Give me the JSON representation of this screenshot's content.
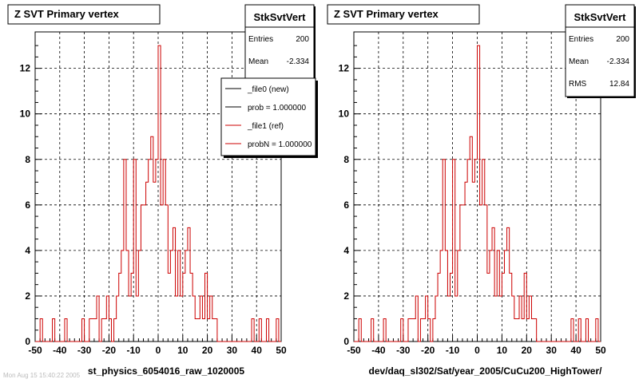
{
  "chart_data": [
    {
      "type": "histogram",
      "title": "Z SVT Primary vertex",
      "xlabel": "st_physics_6054016_raw_1020005",
      "ylabel": "",
      "xlim": [
        -50,
        50
      ],
      "ylim": [
        0,
        13.6
      ],
      "bin_width": 1,
      "x_ticks": [
        -50,
        -40,
        -30,
        -20,
        -10,
        0,
        10,
        20,
        30,
        40,
        50
      ],
      "x_tick_labels": [
        "-50",
        "-40",
        "-30",
        "-20",
        "-10",
        "0",
        "10",
        "20",
        "30",
        "40",
        "50"
      ],
      "y_ticks": [
        0,
        2,
        4,
        6,
        8,
        10,
        12
      ],
      "y_tick_labels": [
        "0",
        "2",
        "4",
        "6",
        "8",
        "10",
        "12"
      ],
      "grid": true,
      "series": [
        {
          "name": "StkSvtVert",
          "color": "#cc0000",
          "bins": [
            {
              "x": -48,
              "count": 1
            },
            {
              "x": -43,
              "count": 1
            },
            {
              "x": -38,
              "count": 1
            },
            {
              "x": -31,
              "count": 1
            },
            {
              "x": -28,
              "count": 1
            },
            {
              "x": -27,
              "count": 1
            },
            {
              "x": -26,
              "count": 1
            },
            {
              "x": -25,
              "count": 2
            },
            {
              "x": -23,
              "count": 1
            },
            {
              "x": -22,
              "count": 1
            },
            {
              "x": -21,
              "count": 2
            },
            {
              "x": -20,
              "count": 1
            },
            {
              "x": -18,
              "count": 1
            },
            {
              "x": -17,
              "count": 2
            },
            {
              "x": -16,
              "count": 3
            },
            {
              "x": -15,
              "count": 4
            },
            {
              "x": -14,
              "count": 8
            },
            {
              "x": -13,
              "count": 4
            },
            {
              "x": -12,
              "count": 2
            },
            {
              "x": -11,
              "count": 3
            },
            {
              "x": -10,
              "count": 8
            },
            {
              "x": -9,
              "count": 2
            },
            {
              "x": -8,
              "count": 4
            },
            {
              "x": -7,
              "count": 6
            },
            {
              "x": -6,
              "count": 6
            },
            {
              "x": -5,
              "count": 7
            },
            {
              "x": -4,
              "count": 8
            },
            {
              "x": -3,
              "count": 9
            },
            {
              "x": -2,
              "count": 7
            },
            {
              "x": -1,
              "count": 8
            },
            {
              "x": 0,
              "count": 13
            },
            {
              "x": 1,
              "count": 6
            },
            {
              "x": 2,
              "count": 8
            },
            {
              "x": 3,
              "count": 6
            },
            {
              "x": 4,
              "count": 3
            },
            {
              "x": 5,
              "count": 4
            },
            {
              "x": 6,
              "count": 5
            },
            {
              "x": 7,
              "count": 2
            },
            {
              "x": 8,
              "count": 4
            },
            {
              "x": 9,
              "count": 2
            },
            {
              "x": 10,
              "count": 3
            },
            {
              "x": 11,
              "count": 4
            },
            {
              "x": 12,
              "count": 5
            },
            {
              "x": 13,
              "count": 3
            },
            {
              "x": 14,
              "count": 2
            },
            {
              "x": 15,
              "count": 1
            },
            {
              "x": 16,
              "count": 1
            },
            {
              "x": 17,
              "count": 2
            },
            {
              "x": 18,
              "count": 1
            },
            {
              "x": 19,
              "count": 3
            },
            {
              "x": 20,
              "count": 1
            },
            {
              "x": 21,
              "count": 2
            },
            {
              "x": 22,
              "count": 1
            },
            {
              "x": 23,
              "count": 1
            },
            {
              "x": 38,
              "count": 1
            },
            {
              "x": 41,
              "count": 1
            },
            {
              "x": 44,
              "count": 1
            },
            {
              "x": 48,
              "count": 1
            }
          ]
        }
      ],
      "stats": {
        "title": "StkSvtVert",
        "rows": [
          {
            "label": "Entries",
            "value": "200"
          },
          {
            "label": "Mean",
            "value": "-2.334"
          }
        ]
      },
      "legend": {
        "placement": "top-right",
        "entries": [
          {
            "label": "_file0 (new)",
            "color": "#000000"
          },
          {
            "label": "prob = 1.000000",
            "color": "#000000"
          },
          {
            "label": "_file1 (ref)",
            "color": "#cc0000"
          },
          {
            "label": "probN = 1.000000",
            "color": "#cc0000"
          }
        ]
      }
    },
    {
      "type": "histogram",
      "title": "Z SVT Primary vertex",
      "xlabel": "dev/daq_sl302/Sat/year_2005/CuCu200_HighTower/",
      "ylabel": "",
      "xlim": [
        -50,
        50
      ],
      "ylim": [
        0,
        13.6
      ],
      "bin_width": 1,
      "x_ticks": [
        -50,
        -40,
        -30,
        -20,
        -10,
        0,
        10,
        20,
        30,
        40,
        50
      ],
      "x_tick_labels": [
        "-50",
        "-40",
        "-30",
        "-20",
        "-10",
        "0",
        "10",
        "20",
        "30",
        "40",
        "50"
      ],
      "y_ticks": [
        0,
        2,
        4,
        6,
        8,
        10,
        12
      ],
      "y_tick_labels": [
        "0",
        "2",
        "4",
        "6",
        "8",
        "10",
        "12"
      ],
      "grid": true,
      "series": [
        {
          "name": "StkSvtVert",
          "color": "#cc0000",
          "bins": [
            {
              "x": -48,
              "count": 1
            },
            {
              "x": -43,
              "count": 1
            },
            {
              "x": -38,
              "count": 1
            },
            {
              "x": -31,
              "count": 1
            },
            {
              "x": -28,
              "count": 1
            },
            {
              "x": -27,
              "count": 1
            },
            {
              "x": -26,
              "count": 1
            },
            {
              "x": -25,
              "count": 2
            },
            {
              "x": -23,
              "count": 1
            },
            {
              "x": -22,
              "count": 1
            },
            {
              "x": -21,
              "count": 2
            },
            {
              "x": -20,
              "count": 1
            },
            {
              "x": -18,
              "count": 1
            },
            {
              "x": -17,
              "count": 2
            },
            {
              "x": -16,
              "count": 3
            },
            {
              "x": -15,
              "count": 4
            },
            {
              "x": -14,
              "count": 8
            },
            {
              "x": -13,
              "count": 4
            },
            {
              "x": -12,
              "count": 2
            },
            {
              "x": -11,
              "count": 3
            },
            {
              "x": -10,
              "count": 8
            },
            {
              "x": -9,
              "count": 2
            },
            {
              "x": -8,
              "count": 4
            },
            {
              "x": -7,
              "count": 6
            },
            {
              "x": -6,
              "count": 6
            },
            {
              "x": -5,
              "count": 7
            },
            {
              "x": -4,
              "count": 8
            },
            {
              "x": -3,
              "count": 9
            },
            {
              "x": -2,
              "count": 7
            },
            {
              "x": -1,
              "count": 8
            },
            {
              "x": 0,
              "count": 13
            },
            {
              "x": 1,
              "count": 6
            },
            {
              "x": 2,
              "count": 8
            },
            {
              "x": 3,
              "count": 6
            },
            {
              "x": 4,
              "count": 3
            },
            {
              "x": 5,
              "count": 4
            },
            {
              "x": 6,
              "count": 5
            },
            {
              "x": 7,
              "count": 2
            },
            {
              "x": 8,
              "count": 4
            },
            {
              "x": 9,
              "count": 2
            },
            {
              "x": 10,
              "count": 3
            },
            {
              "x": 11,
              "count": 4
            },
            {
              "x": 12,
              "count": 5
            },
            {
              "x": 13,
              "count": 3
            },
            {
              "x": 14,
              "count": 2
            },
            {
              "x": 15,
              "count": 1
            },
            {
              "x": 16,
              "count": 1
            },
            {
              "x": 17,
              "count": 2
            },
            {
              "x": 18,
              "count": 1
            },
            {
              "x": 19,
              "count": 3
            },
            {
              "x": 20,
              "count": 1
            },
            {
              "x": 21,
              "count": 2
            },
            {
              "x": 22,
              "count": 1
            },
            {
              "x": 23,
              "count": 1
            },
            {
              "x": 38,
              "count": 1
            },
            {
              "x": 41,
              "count": 1
            },
            {
              "x": 44,
              "count": 1
            },
            {
              "x": 48,
              "count": 1
            }
          ]
        }
      ],
      "stats": {
        "title": "StkSvtVert",
        "rows": [
          {
            "label": "Entries",
            "value": "200"
          },
          {
            "label": "Mean",
            "value": "-2.334"
          },
          {
            "label": "RMS",
            "value": "12.84"
          }
        ]
      }
    }
  ],
  "footer": {
    "timestamp": "Mon Aug 15 15:40:22 2005"
  },
  "colors": {
    "histogram": "#cc0000",
    "grid": "#000000",
    "background": "#ffffff"
  }
}
